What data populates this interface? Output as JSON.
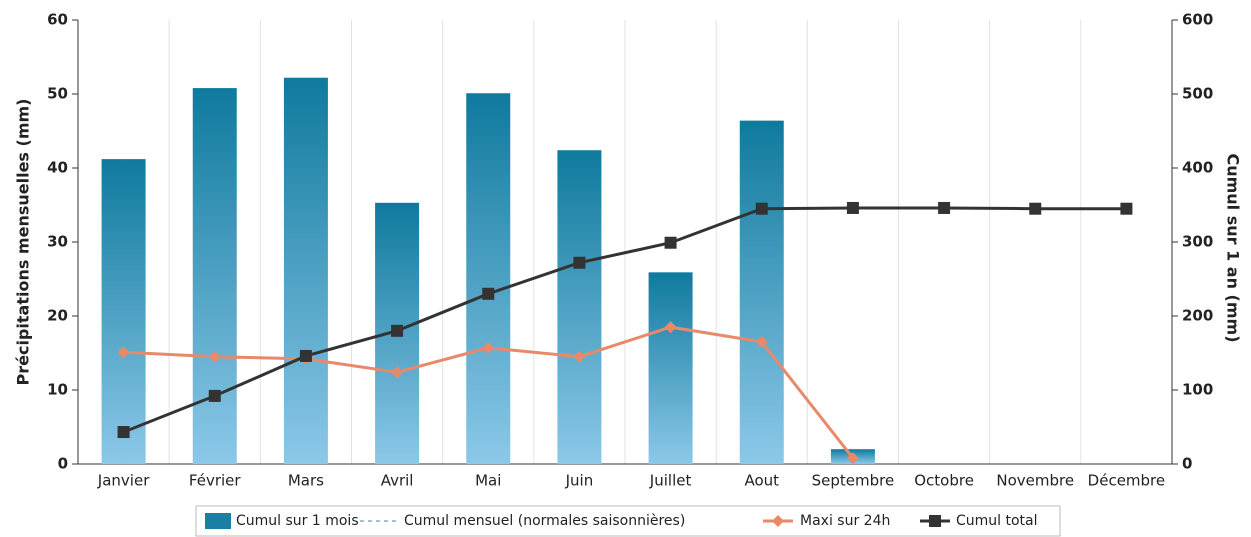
{
  "chart_data": {
    "type": "bar",
    "categories": [
      "Janvier",
      "Février",
      "Mars",
      "Avril",
      "Mai",
      "Juin",
      "Juillet",
      "Aout",
      "Septembre",
      "Octobre",
      "Novembre",
      "Décembre"
    ],
    "y_label": "Précipitations mensuelles (mm)",
    "y2_label": "Cumul sur 1 an (mm)",
    "ylim": [
      0,
      60
    ],
    "yticks": [
      0,
      10,
      20,
      30,
      40,
      50,
      60
    ],
    "y2lim": [
      0,
      600
    ],
    "y2ticks": [
      0,
      100,
      200,
      300,
      400,
      500,
      600
    ],
    "series": [
      {
        "name": "Cumul sur 1 mois",
        "type": "bar",
        "color": "#1a7fa3",
        "axis": "y",
        "values": [
          41.2,
          50.8,
          52.2,
          35.3,
          50.1,
          42.4,
          25.9,
          46.4,
          2.0,
          null,
          null,
          null
        ]
      },
      {
        "name": "Cumul mensuel (normales saisonnières)",
        "type": "dash",
        "color": "#9fc3de",
        "axis": "y",
        "values": [
          null,
          null,
          null,
          null,
          null,
          null,
          null,
          null,
          null,
          null,
          null,
          null
        ]
      },
      {
        "name": "Maxi sur 24h",
        "type": "line",
        "marker": "diamond",
        "color": "#e8896a",
        "axis": "y",
        "values": [
          15.1,
          14.5,
          14.2,
          12.4,
          15.7,
          14.5,
          18.5,
          16.5,
          0.8,
          null,
          null,
          null
        ]
      },
      {
        "name": "Cumul total",
        "type": "line",
        "marker": "square",
        "color": "#333333",
        "axis": "y2",
        "values": [
          43.2,
          92,
          146,
          180,
          230,
          272,
          299,
          345,
          346,
          346,
          345,
          345
        ]
      }
    ]
  }
}
